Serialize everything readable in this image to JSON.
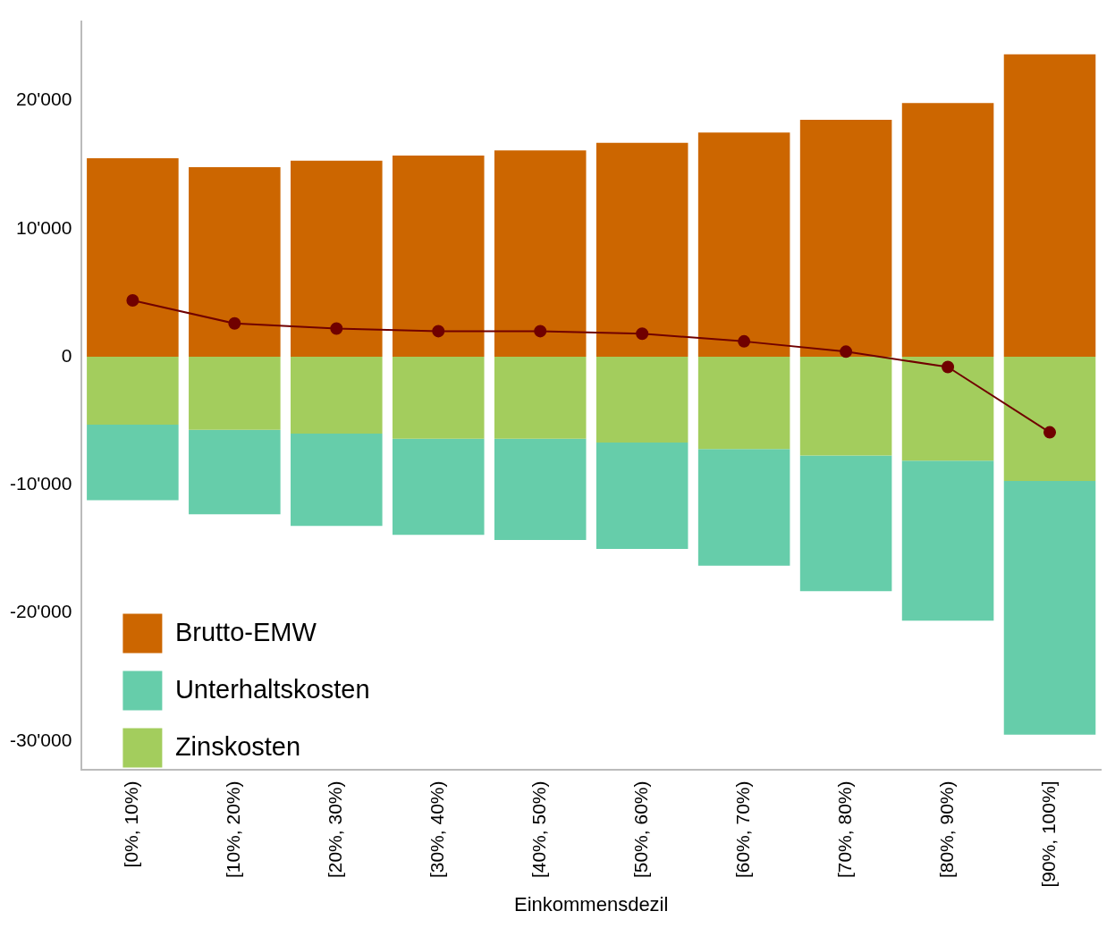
{
  "chart_data": {
    "type": "bar",
    "xlabel": "Einkommensdezil",
    "categories": [
      "[0%, 10%)",
      "[10%, 20%)",
      "[20%, 30%)",
      "[30%, 40%)",
      "[40%, 50%)",
      "[50%, 60%)",
      "[60%, 70%)",
      "[70%, 80%)",
      "[80%, 90%)",
      "[90%, 100%]"
    ],
    "series": [
      {
        "name": "Brutto-EMW",
        "color": "#cc6600",
        "values": [
          15500,
          14800,
          15300,
          15700,
          16100,
          16700,
          17500,
          18500,
          19800,
          23600
        ]
      },
      {
        "name": "Zinskosten",
        "color": "#a3cd5d",
        "values": [
          -5300,
          -5700,
          -6000,
          -6400,
          -6400,
          -6700,
          -7200,
          -7700,
          -8100,
          -9700
        ]
      },
      {
        "name": "Unterhaltskosten",
        "color": "#66cdaa",
        "values": [
          -5900,
          -6600,
          -7200,
          -7500,
          -7900,
          -8300,
          -9100,
          -10600,
          -12500,
          -19800
        ]
      },
      {
        "type": "line",
        "color": "#700000",
        "values": [
          4400,
          2600,
          2200,
          2000,
          2000,
          1800,
          1200,
          400,
          -800,
          -5900
        ]
      }
    ],
    "stacked": true,
    "marker": "circle",
    "legend": "bottom left",
    "grid": false,
    "ylim": [
      -32200,
      26200
    ],
    "yticks": [
      {
        "value": -30000,
        "label": "-30'000"
      },
      {
        "value": -20000,
        "label": "-20'000"
      },
      {
        "value": -10000,
        "label": "-10'000"
      },
      {
        "value": 0,
        "label": "0"
      },
      {
        "value": 10000,
        "label": "10'000"
      },
      {
        "value": 20000,
        "label": "20'000"
      }
    ]
  }
}
